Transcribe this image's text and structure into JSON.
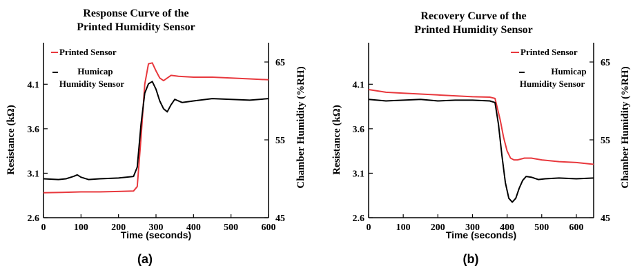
{
  "chart_data": [
    {
      "type": "line",
      "panel_label": "(a)",
      "title": [
        "Response Curve of the",
        "Printed Humidity Sensor"
      ],
      "xlabel": "Time (seconds)",
      "ylabel": "Resistance (kΩ)",
      "y2label": "Chamber Humidity (%RH)",
      "xlim": [
        0,
        600
      ],
      "ylim": [
        2.6,
        4.35
      ],
      "y2lim": [
        45,
        65
      ],
      "xticks": [
        "0",
        "100",
        "200",
        "300",
        "400",
        "500",
        "600"
      ],
      "yticks": [
        "2.6",
        "3.1",
        "3.6",
        "4.1"
      ],
      "y2ticks": [
        "45",
        "55",
        "65"
      ],
      "grid": false,
      "legend": "top-left",
      "series": [
        {
          "name": "Printed Sensor",
          "color": "#e8383d",
          "axis": "left",
          "x": [
            0,
            50,
            100,
            150,
            200,
            240,
            250,
            260,
            270,
            280,
            290,
            300,
            310,
            320,
            340,
            360,
            400,
            450,
            500,
            550,
            600
          ],
          "values": [
            2.88,
            2.885,
            2.89,
            2.89,
            2.895,
            2.9,
            2.95,
            3.5,
            4.1,
            4.33,
            4.34,
            4.25,
            4.17,
            4.14,
            4.2,
            4.19,
            4.18,
            4.18,
            4.17,
            4.16,
            4.15
          ]
        },
        {
          "name": "Humicap Humidity Sensor",
          "color": "#000000",
          "axis": "right",
          "x": [
            0,
            40,
            60,
            80,
            90,
            100,
            120,
            150,
            200,
            240,
            250,
            260,
            270,
            280,
            290,
            300,
            310,
            320,
            330,
            340,
            350,
            370,
            400,
            450,
            500,
            550,
            600
          ],
          "values": [
            50.0,
            49.9,
            50.0,
            50.3,
            50.5,
            50.2,
            49.9,
            50.0,
            50.1,
            50.3,
            51.5,
            57.0,
            61.0,
            62.2,
            62.5,
            61.5,
            60.0,
            59.0,
            58.6,
            59.5,
            60.2,
            59.8,
            60.0,
            60.3,
            60.2,
            60.1,
            60.3
          ]
        }
      ]
    },
    {
      "type": "line",
      "panel_label": "(b)",
      "title": [
        "Recovery Curve of the",
        "Printed Humidity Sensor"
      ],
      "xlabel": "Time (seconds)",
      "ylabel": "Resistance (kΩ)",
      "y2label": "Chamber Humidity (%RH)",
      "xlim": [
        0,
        650
      ],
      "ylim": [
        2.6,
        4.35
      ],
      "y2lim": [
        45,
        65
      ],
      "xticks": [
        "0",
        "100",
        "200",
        "300",
        "400",
        "500",
        "600"
      ],
      "yticks": [
        "2.6",
        "3.1",
        "3.6",
        "4.1"
      ],
      "y2ticks": [
        "45",
        "55",
        "65"
      ],
      "grid": false,
      "legend": "top-right",
      "series": [
        {
          "name": "Printed Sensor",
          "color": "#e8383d",
          "axis": "left",
          "x": [
            0,
            50,
            100,
            150,
            200,
            250,
            300,
            350,
            365,
            380,
            390,
            400,
            410,
            420,
            430,
            450,
            470,
            500,
            550,
            600,
            650
          ],
          "values": [
            4.04,
            4.01,
            4.0,
            3.99,
            3.98,
            3.97,
            3.96,
            3.955,
            3.94,
            3.7,
            3.5,
            3.35,
            3.27,
            3.25,
            3.25,
            3.27,
            3.27,
            3.25,
            3.23,
            3.22,
            3.2
          ]
        },
        {
          "name": "Humicap Humidity Sensor",
          "color": "#000000",
          "axis": "right",
          "x": [
            0,
            50,
            100,
            150,
            200,
            250,
            300,
            350,
            365,
            375,
            385,
            395,
            405,
            415,
            425,
            435,
            445,
            455,
            470,
            490,
            510,
            550,
            600,
            650
          ],
          "values": [
            60.2,
            60.0,
            60.1,
            60.2,
            60.0,
            60.1,
            60.1,
            60.0,
            59.8,
            57.0,
            53.0,
            49.5,
            47.5,
            47.0,
            47.5,
            48.8,
            49.8,
            50.3,
            50.2,
            49.9,
            50.0,
            50.1,
            50.0,
            50.1
          ]
        }
      ]
    }
  ]
}
